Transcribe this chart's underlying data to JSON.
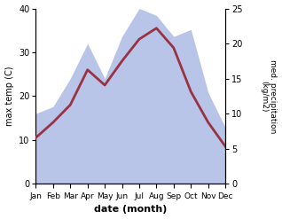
{
  "months": [
    "Jan",
    "Feb",
    "Mar",
    "Apr",
    "May",
    "Jun",
    "Jul",
    "Aug",
    "Sep",
    "Oct",
    "Nov",
    "Dec"
  ],
  "max_temp": [
    10.5,
    14.0,
    18.0,
    26.0,
    22.5,
    28.0,
    33.0,
    35.5,
    31.0,
    21.0,
    14.0,
    8.5
  ],
  "precipitation": [
    10.0,
    11.0,
    15.0,
    20.0,
    15.0,
    21.0,
    25.0,
    24.0,
    21.0,
    22.0,
    13.0,
    8.0
  ],
  "temp_color": "#993344",
  "precip_fill_color": "#b8c4e8",
  "left_ylim": [
    0,
    40
  ],
  "right_ylim": [
    0,
    25
  ],
  "left_yticks": [
    0,
    10,
    20,
    30,
    40
  ],
  "right_yticks": [
    0,
    5,
    10,
    15,
    20,
    25
  ],
  "xlabel": "date (month)",
  "ylabel_left": "max temp (C)",
  "ylabel_right": "med. precipitation\n(kg/m2)",
  "figsize": [
    3.18,
    2.47
  ],
  "dpi": 100
}
